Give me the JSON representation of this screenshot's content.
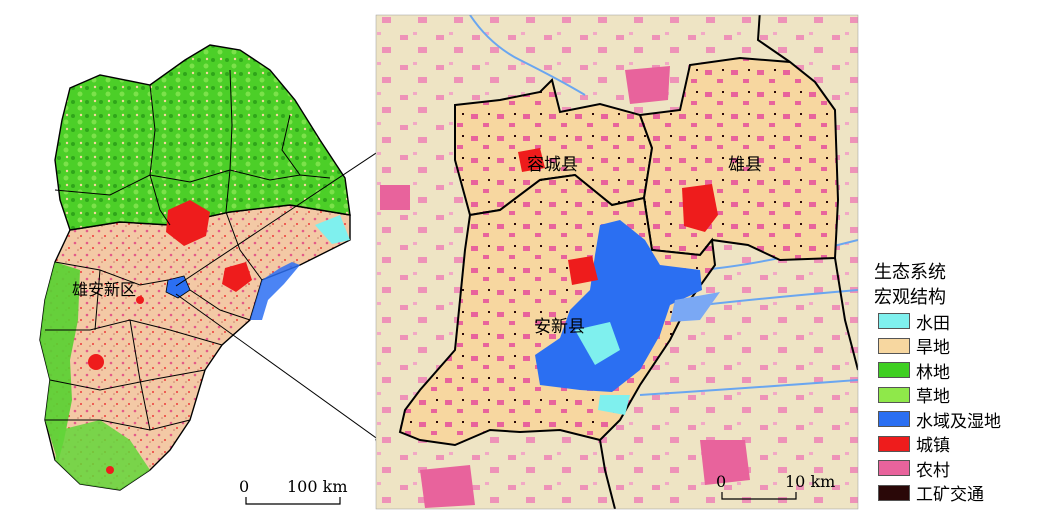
{
  "left_map": {
    "region_label": "雄安新区",
    "scale": {
      "zero": "0",
      "length_label": "100 km"
    }
  },
  "right_map": {
    "county_labels": [
      "容城县",
      "雄县",
      "安新县"
    ],
    "scale": {
      "zero": "0",
      "length_label": "10 km"
    }
  },
  "legend": {
    "title_line1": "生态系统",
    "title_line2": "宏观结构",
    "items": [
      {
        "label": "水田",
        "color": "#7ff0ee"
      },
      {
        "label": "旱地",
        "color": "#f7d7a0"
      },
      {
        "label": "林地",
        "color": "#3fcf22"
      },
      {
        "label": "草地",
        "color": "#8fe84a"
      },
      {
        "label": "水域及湿地",
        "color": "#2b6ff2"
      },
      {
        "label": "城镇",
        "color": "#ee1c1c"
      },
      {
        "label": "农村",
        "color": "#e8639c"
      },
      {
        "label": "工矿交通",
        "color": "#2a0808"
      }
    ]
  }
}
